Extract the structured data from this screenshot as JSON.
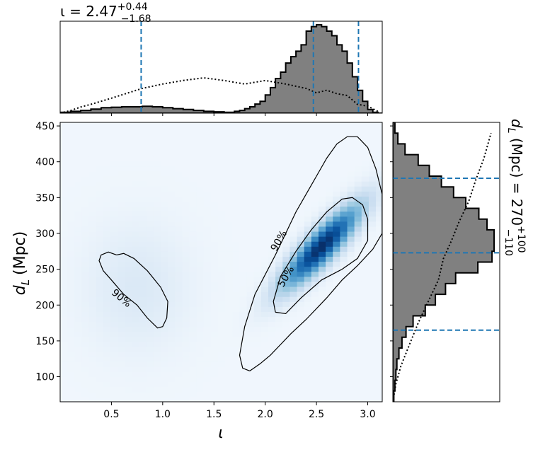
{
  "chart_data": [
    {
      "panel": "top-marginal",
      "type": "histogram",
      "title_main": "ι = 2.47",
      "title_sup": "+0.44",
      "title_sub": "−1.68",
      "xlim": [
        0.0,
        3.1416
      ],
      "interval_lines": [
        0.79,
        2.47,
        2.91
      ],
      "bin_edges": [
        0.0,
        0.1,
        0.2,
        0.3,
        0.4,
        0.5,
        0.6,
        0.7,
        0.8,
        0.9,
        1.0,
        1.1,
        1.2,
        1.3,
        1.4,
        1.5,
        1.6,
        1.7,
        1.75,
        1.8,
        1.85,
        1.9,
        1.95,
        2.0,
        2.05,
        2.1,
        2.15,
        2.2,
        2.25,
        2.3,
        2.35,
        2.4,
        2.45,
        2.5,
        2.55,
        2.6,
        2.65,
        2.7,
        2.75,
        2.8,
        2.85,
        2.9,
        2.95,
        3.0,
        3.05,
        3.1,
        3.1416
      ],
      "posterior_density": [
        0.01,
        0.02,
        0.03,
        0.045,
        0.06,
        0.065,
        0.07,
        0.07,
        0.075,
        0.07,
        0.06,
        0.05,
        0.04,
        0.03,
        0.02,
        0.015,
        0.01,
        0.02,
        0.03,
        0.05,
        0.07,
        0.1,
        0.13,
        0.2,
        0.28,
        0.38,
        0.45,
        0.55,
        0.62,
        0.68,
        0.75,
        0.9,
        0.95,
        0.97,
        0.95,
        0.9,
        0.85,
        0.75,
        0.68,
        0.55,
        0.4,
        0.25,
        0.13,
        0.04,
        0.01,
        0.0
      ],
      "prior_curve_x": [
        0.0,
        0.1,
        0.2,
        0.3,
        0.5,
        0.8,
        1.0,
        1.2,
        1.4,
        1.6,
        1.8,
        2.0,
        2.2,
        2.4,
        2.5,
        2.6,
        2.7,
        2.8,
        2.9,
        3.0,
        3.1
      ],
      "prior_curve_y": [
        0.0,
        0.03,
        0.07,
        0.1,
        0.17,
        0.28,
        0.33,
        0.37,
        0.4,
        0.37,
        0.33,
        0.37,
        0.33,
        0.28,
        0.23,
        0.26,
        0.22,
        0.2,
        0.1,
        0.08,
        0.02
      ],
      "posterior_color": "#808080",
      "line_color": "#1f77b4"
    },
    {
      "panel": "joint",
      "type": "heatmap",
      "xlabel_symbol": "ι",
      "ylabel_base": "d",
      "ylabel_sub": "L",
      "ylabel_unit": "(Mpc)",
      "xlim": [
        0.0,
        3.1416
      ],
      "ylim": [
        65,
        455
      ],
      "xticks": [
        "0.5",
        "1.0",
        "1.5",
        "2.0",
        "2.5",
        "3.0"
      ],
      "xtick_values": [
        0.5,
        1.0,
        1.5,
        2.0,
        2.5,
        3.0
      ],
      "yticks": [
        "100",
        "150",
        "200",
        "250",
        "300",
        "350",
        "400",
        "450"
      ],
      "ytick_values": [
        100,
        150,
        200,
        250,
        300,
        350,
        400,
        450
      ],
      "colormap": [
        "#f7fbff",
        "#deebf7",
        "#c6dbef",
        "#9ecae1",
        "#6baed6",
        "#4292c6",
        "#2171b5",
        "#08519c",
        "#08306b"
      ],
      "density_peaks": [
        {
          "x": 2.55,
          "y": 282,
          "weight": 1.0
        },
        {
          "x": 0.75,
          "y": 225,
          "weight": 0.08
        }
      ],
      "contours": [
        {
          "label": "90%",
          "label_pos": [
            2.13,
            290
          ],
          "x": [
            1.85,
            1.95,
            2.05,
            2.15,
            2.25,
            2.4,
            2.6,
            2.75,
            2.9,
            3.05,
            3.14,
            3.14,
            3.08,
            3.0,
            2.9,
            2.8,
            2.7,
            2.6,
            2.5,
            2.4,
            2.3,
            2.2,
            2.1,
            1.9,
            1.8,
            1.75,
            1.78,
            1.85
          ],
          "y": [
            108,
            118,
            130,
            145,
            160,
            180,
            210,
            235,
            255,
            278,
            300,
            355,
            390,
            420,
            435,
            435,
            425,
            405,
            380,
            355,
            330,
            300,
            270,
            215,
            170,
            130,
            112,
            108
          ]
        },
        {
          "label": "50%",
          "label_pos": [
            2.2,
            240
          ],
          "x": [
            2.1,
            2.2,
            2.35,
            2.55,
            2.75,
            2.9,
            3.0,
            3.0,
            2.95,
            2.85,
            2.75,
            2.6,
            2.45,
            2.3,
            2.15,
            2.08,
            2.1
          ],
          "y": [
            190,
            188,
            210,
            235,
            250,
            265,
            290,
            320,
            340,
            350,
            348,
            330,
            305,
            275,
            240,
            205,
            190
          ]
        },
        {
          "label": "90%",
          "label_pos": [
            0.6,
            210
          ],
          "x": [
            0.55,
            0.62,
            0.72,
            0.85,
            0.98,
            1.05,
            1.04,
            1.0,
            0.95,
            0.85,
            0.75,
            0.62,
            0.5,
            0.42,
            0.38,
            0.4,
            0.47,
            0.55
          ],
          "y": [
            270,
            272,
            265,
            248,
            225,
            205,
            182,
            170,
            168,
            182,
            200,
            215,
            235,
            248,
            262,
            270,
            274,
            270
          ]
        }
      ]
    },
    {
      "panel": "right-marginal",
      "type": "histogram",
      "title_base": "d",
      "title_sub": "L",
      "title_rest": " (Mpc) = 270",
      "title_sup": "+100",
      "title_subval": "−110",
      "ylim": [
        65,
        455
      ],
      "interval_lines": [
        165,
        273,
        377
      ],
      "bin_edges": [
        65,
        80,
        95,
        110,
        125,
        140,
        155,
        170,
        185,
        200,
        215,
        230,
        245,
        260,
        275,
        290,
        305,
        320,
        335,
        350,
        365,
        380,
        395,
        410,
        425,
        440,
        455
      ],
      "posterior_density": [
        0.01,
        0.02,
        0.03,
        0.04,
        0.06,
        0.09,
        0.13,
        0.2,
        0.32,
        0.42,
        0.52,
        0.62,
        0.84,
        0.98,
        1.0,
        1.0,
        0.93,
        0.85,
        0.72,
        0.6,
        0.48,
        0.36,
        0.25,
        0.12,
        0.05,
        0.02
      ],
      "prior_curve_x": [
        0.0,
        0.03,
        0.08,
        0.15,
        0.25,
        0.35,
        0.45,
        0.5,
        0.58,
        0.65,
        0.75,
        0.82,
        0.9,
        0.97
      ],
      "prior_curve_y": [
        65,
        90,
        115,
        140,
        175,
        205,
        235,
        265,
        290,
        315,
        345,
        375,
        405,
        440
      ],
      "posterior_color": "#808080",
      "line_color": "#1f77b4"
    }
  ]
}
